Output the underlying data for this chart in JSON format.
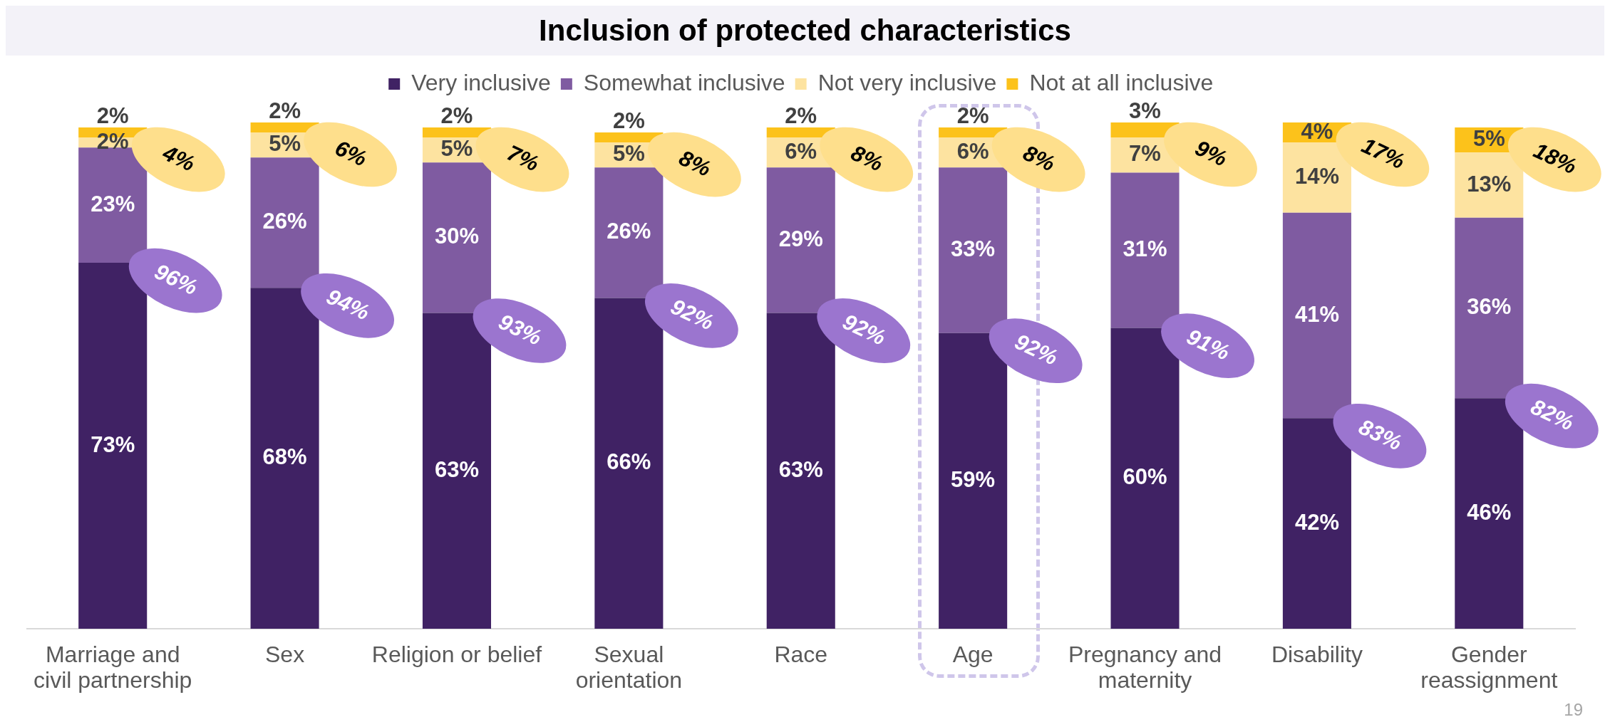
{
  "chart_data": {
    "type": "bar",
    "title": "Inclusion of protected characteristics",
    "categories": [
      "Marriage and civil partnership",
      "Sex",
      "Religion or belief",
      "Sexual orientation",
      "Race",
      "Age",
      "Pregnancy and maternity",
      "Disability",
      "Gender reassignment"
    ],
    "series": [
      {
        "name": "Very inclusive",
        "color": "#402264",
        "values": [
          73,
          68,
          63,
          66,
          63,
          59,
          60,
          42,
          46
        ],
        "value_labels": [
          "73%",
          "68%",
          "63%",
          "66%",
          "63%",
          "59%",
          "60%",
          "42%",
          "46%"
        ]
      },
      {
        "name": "Somewhat inclusive",
        "color": "#7f5ba1",
        "values": [
          23,
          26,
          30,
          26,
          29,
          33,
          31,
          41,
          36
        ],
        "value_labels": [
          "23%",
          "26%",
          "30%",
          "26%",
          "29%",
          "33%",
          "31%",
          "41%",
          "36%"
        ]
      },
      {
        "name": "Not very inclusive",
        "color": "#fde3a0",
        "values": [
          2,
          5,
          5,
          5,
          6,
          6,
          7,
          14,
          13
        ],
        "value_labels": [
          "2%",
          "5%",
          "5%",
          "5%",
          "6%",
          "6%",
          "7%",
          "14%",
          "13%"
        ]
      },
      {
        "name": "Not at all inclusive",
        "color": "#fcc21b",
        "values": [
          2,
          2,
          2,
          2,
          2,
          2,
          3,
          4,
          5
        ],
        "value_labels": [
          "2%",
          "2%",
          "2%",
          "2%",
          "2%",
          "2%",
          "3%",
          "4%",
          "5%"
        ]
      }
    ],
    "stacked": true,
    "ylim": [
      0,
      101
    ],
    "tick_labels": "x",
    "legend": "top",
    "annotations": [
      {
        "text": "96%",
        "x": "Marriage and civil partnership",
        "y": 73
      },
      {
        "text": "4%",
        "x": "Marriage and civil partnership",
        "y": 100
      },
      {
        "text": "94%",
        "x": "Sex",
        "y": 68
      },
      {
        "text": "6%",
        "x": "Sex",
        "y": 101
      },
      {
        "text": "93%",
        "x": "Religion or belief",
        "y": 63
      },
      {
        "text": "7%",
        "x": "Religion or belief",
        "y": 100
      },
      {
        "text": "92%",
        "x": "Sexual orientation",
        "y": 66
      },
      {
        "text": "8%",
        "x": "Sexual orientation",
        "y": 99
      },
      {
        "text": "92%",
        "x": "Race",
        "y": 63
      },
      {
        "text": "8%",
        "x": "Race",
        "y": 100
      },
      {
        "text": "92%",
        "x": "Age",
        "y": 59
      },
      {
        "text": "8%",
        "x": "Age",
        "y": 100
      },
      {
        "text": "91%",
        "x": "Pregnancy and maternity",
        "y": 60
      },
      {
        "text": "9%",
        "x": "Pregnancy and maternity",
        "y": 101
      },
      {
        "text": "83%",
        "x": "Disability",
        "y": 42
      },
      {
        "text": "17%",
        "x": "Disability",
        "y": 101
      },
      {
        "text": "82%",
        "x": "Gender reassignment",
        "y": 46
      },
      {
        "text": "18%",
        "x": "Gender reassignment",
        "y": 100
      },
      "19"
    ]
  }
}
